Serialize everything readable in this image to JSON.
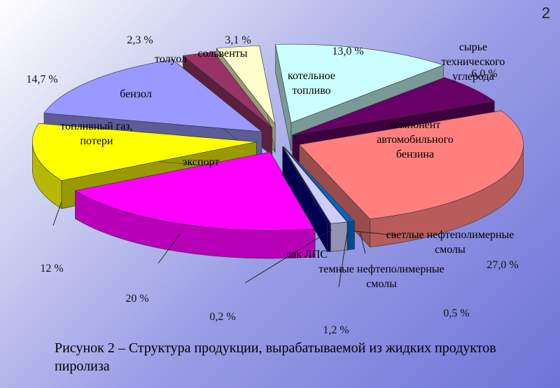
{
  "slide": {
    "number": "2"
  },
  "caption": "Рисунок 2 – Структура продукции, вырабатываемой из жидких продуктов пиролиза",
  "chart_data": {
    "type": "pie",
    "title": "",
    "categories": [
      "котельное топливо",
      "сырье технического углерода",
      "компонент автомобильного бензина",
      "светлые нефтеполимерные смолы",
      "темные нефтеполимерные смолы",
      "лак ЛПС",
      "экспорт",
      "топливный газ, потери",
      "бензол",
      "толуол",
      "сольвенты"
    ],
    "values_labels": [
      "13,0 %",
      "6,0 %",
      "27,0 %",
      "0,5 %",
      "1,2 %",
      "0,2 %",
      "20 %",
      "12 %",
      "14,7 %",
      "2,3 %",
      "3,1 %"
    ],
    "values": [
      13.0,
      6.0,
      27.0,
      0.5,
      1.2,
      0.2,
      20.0,
      12.0,
      14.7,
      2.3,
      3.1
    ],
    "colors": [
      "#ccffff",
      "#660066",
      "#ff7f7f",
      "#0066cc",
      "#ccccff",
      "#000080",
      "#ff00ff",
      "#ffff00",
      "#9999ff",
      "#993366",
      "#ffffcc"
    ],
    "style": "exploded 3D pie"
  }
}
